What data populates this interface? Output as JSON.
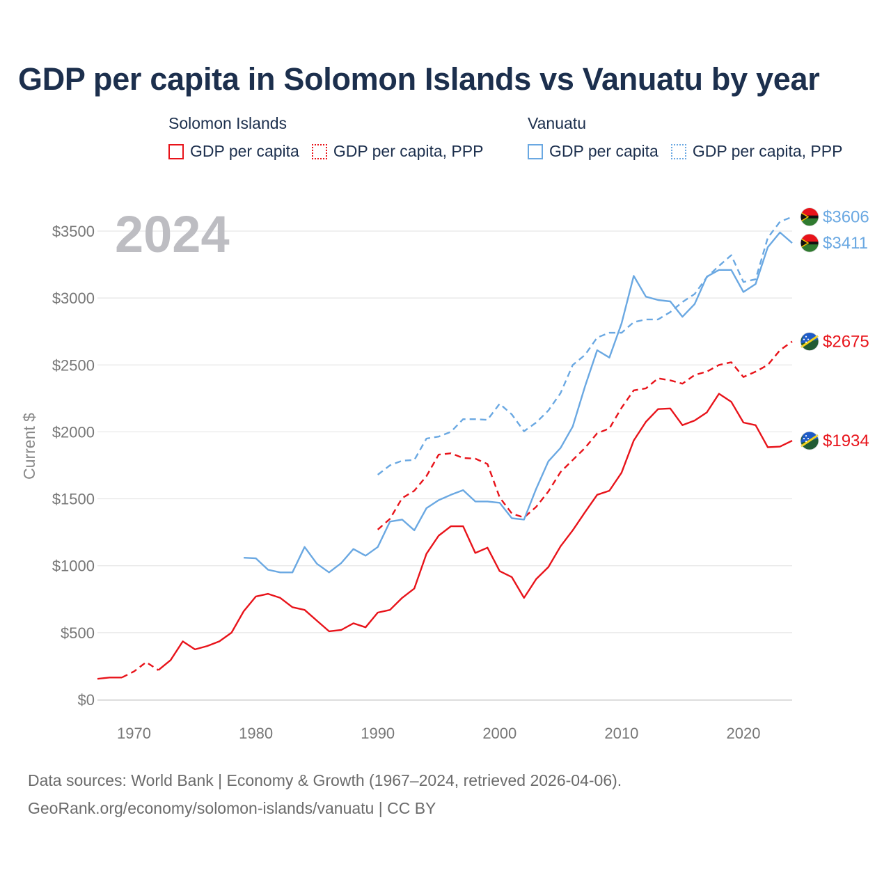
{
  "title": "GDP per capita in Solomon Islands vs Vanuatu by year",
  "legend": {
    "groups": [
      {
        "name": "Solomon Islands",
        "color": "#e8131a",
        "items": [
          {
            "label": "GDP per capita",
            "style": "solid"
          },
          {
            "label": "GDP per capita, PPP",
            "style": "dotted"
          }
        ]
      },
      {
        "name": "Vanuatu",
        "color": "#6aa8e2",
        "items": [
          {
            "label": "GDP per capita",
            "style": "solid"
          },
          {
            "label": "GDP per capita, PPP",
            "style": "dotted"
          }
        ]
      }
    ]
  },
  "source": {
    "line1": "Data sources: World Bank | Economy & Growth (1967–2024, retrieved 2026-04-06).",
    "line2": "GeoRank.org/economy/solomon-islands/vanuatu | CC BY"
  },
  "chart_data": {
    "type": "line",
    "year_label": "2024",
    "ylabel": "Current $",
    "xlim": [
      1967,
      2024
    ],
    "ylim": [
      0,
      3500
    ],
    "xticks": [
      1970,
      1980,
      1990,
      2000,
      2010,
      2020
    ],
    "yticks": [
      0,
      500,
      1000,
      1500,
      2000,
      2500,
      3000,
      3500
    ],
    "ytick_labels": [
      "$0",
      "$500",
      "$1000",
      "$1500",
      "$2000",
      "$2500",
      "$3000",
      "$3500"
    ],
    "series": [
      {
        "name": "Solomon Islands GDP per capita",
        "country": "Solomon Islands",
        "color": "#e8131a",
        "dash": "solid",
        "end_label": "$1934",
        "x": [
          1967,
          1968,
          1969,
          1970,
          1971,
          1972,
          1973,
          1974,
          1975,
          1976,
          1977,
          1978,
          1979,
          1980,
          1981,
          1982,
          1983,
          1984,
          1985,
          1986,
          1987,
          1988,
          1989,
          1990,
          1991,
          1992,
          1993,
          1994,
          1995,
          1996,
          1997,
          1998,
          1999,
          2000,
          2001,
          2002,
          2003,
          2004,
          2005,
          2006,
          2007,
          2008,
          2009,
          2010,
          2011,
          2012,
          2013,
          2014,
          2015,
          2016,
          2017,
          2018,
          2019,
          2020,
          2021,
          2022,
          2023,
          2024
        ],
        "y": [
          155,
          165,
          165,
          null,
          null,
          220,
          295,
          435,
          375,
          400,
          435,
          500,
          660,
          770,
          790,
          760,
          690,
          670,
          590,
          510,
          520,
          570,
          540,
          650,
          670,
          760,
          830,
          1090,
          1225,
          1295,
          1295,
          1095,
          1135,
          960,
          915,
          760,
          900,
          990,
          1145,
          1265,
          1400,
          1530,
          1560,
          1695,
          1935,
          2075,
          2170,
          2175,
          2050,
          2085,
          2145,
          2285,
          2225,
          2070,
          2050,
          1885,
          1890,
          1934
        ]
      },
      {
        "name": "Solomon Islands GDP per capita (gap fill)",
        "country": "Solomon Islands",
        "color": "#e8131a",
        "dash": "dashed",
        "x": [
          1969,
          1970,
          1971,
          1972
        ],
        "y": [
          165,
          210,
          280,
          220
        ]
      },
      {
        "name": "Solomon Islands GDP per capita, PPP",
        "country": "Solomon Islands",
        "color": "#e8131a",
        "dash": "dashed",
        "end_label": "$2675",
        "x": [
          1990,
          1991,
          1992,
          1993,
          1994,
          1995,
          1996,
          1997,
          1998,
          1999,
          2000,
          2001,
          2002,
          2003,
          2004,
          2005,
          2006,
          2007,
          2008,
          2009,
          2010,
          2011,
          2012,
          2013,
          2014,
          2015,
          2016,
          2017,
          2018,
          2019,
          2020,
          2021,
          2022,
          2023,
          2024
        ],
        "y": [
          1270,
          1350,
          1505,
          1560,
          1670,
          1830,
          1840,
          1805,
          1800,
          1760,
          1510,
          1390,
          1360,
          1440,
          1555,
          1700,
          1790,
          1880,
          1990,
          2025,
          2180,
          2310,
          2325,
          2400,
          2385,
          2360,
          2425,
          2450,
          2500,
          2520,
          2410,
          2450,
          2500,
          2610,
          2675
        ]
      },
      {
        "name": "Vanuatu GDP per capita",
        "country": "Vanuatu",
        "color": "#6aa8e2",
        "dash": "solid",
        "end_label": "$3411",
        "x": [
          1979,
          1980,
          1981,
          1982,
          1983,
          1984,
          1985,
          1986,
          1987,
          1988,
          1989,
          1990,
          1991,
          1992,
          1993,
          1994,
          1995,
          1996,
          1997,
          1998,
          1999,
          2000,
          2001,
          2002,
          2003,
          2004,
          2005,
          2006,
          2007,
          2008,
          2009,
          2010,
          2011,
          2012,
          2013,
          2014,
          2015,
          2016,
          2017,
          2018,
          2019,
          2020,
          2021,
          2022,
          2023,
          2024
        ],
        "y": [
          1060,
          1055,
          970,
          950,
          950,
          1140,
          1015,
          950,
          1020,
          1125,
          1075,
          1140,
          1330,
          1345,
          1265,
          1430,
          1490,
          1530,
          1565,
          1480,
          1480,
          1470,
          1355,
          1345,
          1575,
          1780,
          1880,
          2040,
          2340,
          2610,
          2555,
          2810,
          3165,
          3010,
          2985,
          2975,
          2860,
          2955,
          3160,
          3210,
          3210,
          3045,
          3105,
          3380,
          3490,
          3411
        ]
      },
      {
        "name": "Vanuatu GDP per capita, PPP",
        "country": "Vanuatu",
        "color": "#6aa8e2",
        "dash": "dashed",
        "end_label": "$3606",
        "x": [
          1990,
          1991,
          1992,
          1993,
          1994,
          1995,
          1996,
          1997,
          1998,
          1999,
          2000,
          2001,
          2002,
          2003,
          2004,
          2005,
          2006,
          2007,
          2008,
          2009,
          2010,
          2011,
          2012,
          2013,
          2014,
          2015,
          2016,
          2017,
          2018,
          2019,
          2020,
          2021,
          2022,
          2023,
          2024
        ],
        "y": [
          1680,
          1750,
          1785,
          1790,
          1950,
          1965,
          2000,
          2095,
          2095,
          2090,
          2210,
          2130,
          2005,
          2070,
          2160,
          2290,
          2500,
          2575,
          2705,
          2740,
          2740,
          2820,
          2840,
          2840,
          2895,
          2970,
          3030,
          3155,
          3240,
          3320,
          3120,
          3140,
          3450,
          3570,
          3606
        ]
      }
    ]
  }
}
